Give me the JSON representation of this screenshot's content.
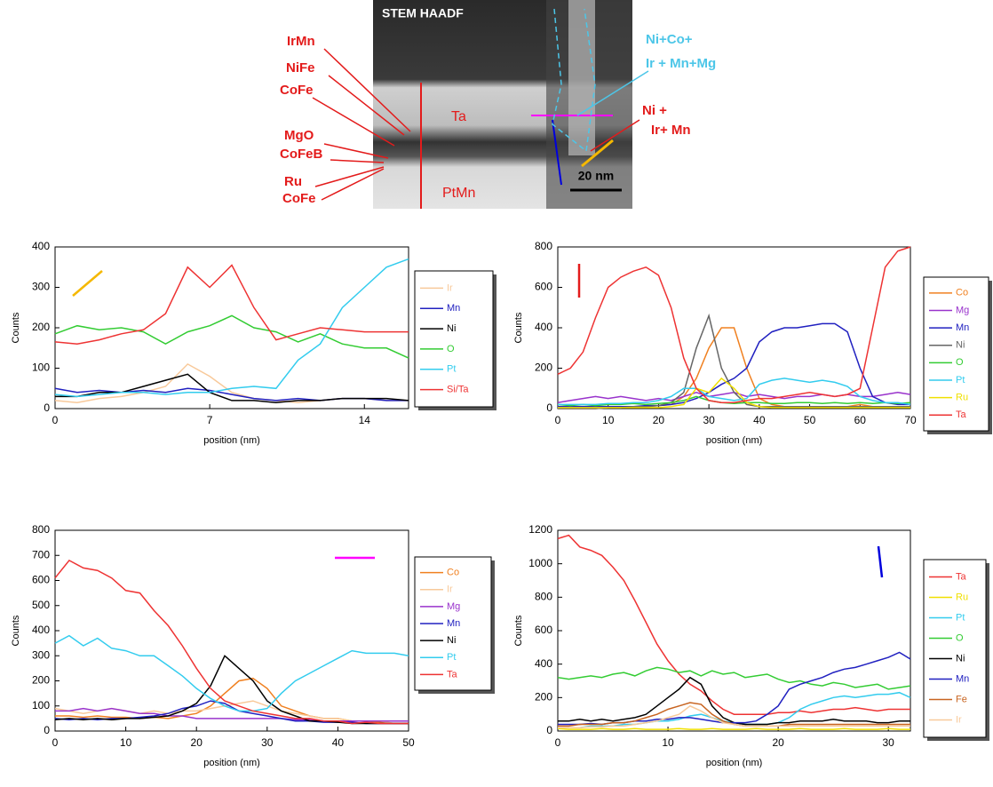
{
  "micrograph": {
    "title": "STEM HAADF",
    "scale_bar": "20 nm",
    "regions": [
      "Ta",
      "PtMn"
    ],
    "left_labels": [
      "IrMn",
      "NiFe",
      "CoFe",
      "MgO",
      "CoFeB",
      "Ru",
      "CoFe"
    ],
    "right_labels": [
      "Ni+Co+",
      "Ir + Mn+Mg",
      "Ni +",
      "Ir+ Mn"
    ]
  },
  "chart_data": [
    {
      "type": "line",
      "xlabel": "position (nm)",
      "ylabel": "Counts",
      "xlim": [
        0,
        16
      ],
      "ylim": [
        0,
        400
      ],
      "xticks": [
        0,
        7,
        14
      ],
      "yticks": [
        0,
        100,
        200,
        300,
        400
      ],
      "x": [
        0,
        1,
        2,
        3,
        4,
        5,
        6,
        7,
        8,
        9,
        10,
        11,
        12,
        13,
        14,
        15,
        16
      ],
      "series": [
        {
          "name": "Ir",
          "color": "#f8c99a",
          "values": [
            20,
            15,
            25,
            30,
            40,
            55,
            110,
            80,
            40,
            25,
            20,
            15,
            20,
            25,
            25,
            20,
            20
          ]
        },
        {
          "name": "Mn",
          "color": "#2020c0",
          "values": [
            50,
            40,
            45,
            40,
            45,
            40,
            50,
            45,
            35,
            25,
            20,
            25,
            20,
            25,
            25,
            20,
            20
          ]
        },
        {
          "name": "Ni",
          "color": "#000000",
          "values": [
            30,
            30,
            40,
            40,
            55,
            70,
            85,
            40,
            20,
            20,
            15,
            20,
            20,
            25,
            25,
            25,
            20
          ]
        },
        {
          "name": "O",
          "color": "#33cc33",
          "values": [
            185,
            205,
            195,
            200,
            190,
            160,
            190,
            205,
            230,
            200,
            190,
            165,
            185,
            160,
            150,
            150,
            125
          ]
        },
        {
          "name": "Pt",
          "color": "#33ccee",
          "values": [
            35,
            30,
            35,
            40,
            40,
            35,
            40,
            40,
            50,
            55,
            50,
            120,
            160,
            250,
            300,
            350,
            370
          ]
        },
        {
          "name": "Si/Ta",
          "color": "#ee3333",
          "values": [
            165,
            160,
            170,
            185,
            195,
            235,
            350,
            300,
            355,
            250,
            170,
            185,
            200,
            195,
            190,
            190,
            190
          ]
        }
      ]
    },
    {
      "type": "line",
      "xlabel": "position (nm)",
      "ylabel": "Counts",
      "xlim": [
        0,
        70
      ],
      "ylim": [
        0,
        800
      ],
      "xticks": [
        0,
        10,
        20,
        30,
        40,
        50,
        60,
        70
      ],
      "yticks": [
        0,
        200,
        400,
        600,
        800
      ],
      "x": [
        0,
        2.5,
        5,
        7.5,
        10,
        12.5,
        15,
        17.5,
        20,
        22.5,
        25,
        27.5,
        30,
        32.5,
        35,
        37.5,
        40,
        42.5,
        45,
        47.5,
        50,
        52.5,
        55,
        57.5,
        60,
        62.5,
        65,
        67.5,
        70
      ],
      "series": [
        {
          "name": "Co",
          "color": "#f08020",
          "values": [
            0,
            0,
            0,
            0,
            5,
            5,
            10,
            10,
            15,
            20,
            60,
            150,
            300,
            400,
            400,
            200,
            50,
            20,
            10,
            10,
            10,
            10,
            10,
            10,
            20,
            10,
            10,
            10,
            10
          ]
        },
        {
          "name": "Mg",
          "color": "#9933cc",
          "values": [
            30,
            40,
            50,
            60,
            50,
            60,
            50,
            40,
            50,
            40,
            60,
            80,
            60,
            70,
            80,
            60,
            70,
            60,
            50,
            60,
            60,
            70,
            60,
            70,
            60,
            60,
            70,
            80,
            70
          ]
        },
        {
          "name": "Mn",
          "color": "#2020c0",
          "values": [
            10,
            10,
            10,
            10,
            10,
            10,
            10,
            15,
            15,
            20,
            30,
            50,
            80,
            120,
            150,
            200,
            330,
            380,
            400,
            400,
            410,
            420,
            420,
            380,
            200,
            60,
            30,
            20,
            20
          ]
        },
        {
          "name": "Ni",
          "color": "#666666",
          "values": [
            0,
            0,
            0,
            0,
            5,
            5,
            10,
            10,
            15,
            30,
            80,
            300,
            460,
            200,
            80,
            20,
            10,
            10,
            10,
            10,
            10,
            10,
            10,
            10,
            10,
            10,
            10,
            10,
            10
          ]
        },
        {
          "name": "O",
          "color": "#33cc33",
          "values": [
            20,
            15,
            20,
            15,
            20,
            20,
            25,
            20,
            25,
            30,
            40,
            60,
            40,
            30,
            25,
            30,
            30,
            25,
            25,
            30,
            30,
            25,
            30,
            25,
            30,
            25,
            30,
            25,
            30
          ]
        },
        {
          "name": "Pt",
          "color": "#33ccee",
          "values": [
            20,
            20,
            20,
            20,
            25,
            25,
            30,
            30,
            40,
            60,
            100,
            100,
            60,
            50,
            40,
            50,
            120,
            140,
            150,
            140,
            130,
            140,
            130,
            110,
            60,
            40,
            30,
            30,
            20
          ]
        },
        {
          "name": "Ru",
          "color": "#f0e000",
          "values": [
            5,
            5,
            5,
            5,
            5,
            5,
            5,
            5,
            5,
            10,
            20,
            100,
            80,
            150,
            100,
            30,
            10,
            5,
            5,
            5,
            5,
            5,
            5,
            5,
            5,
            5,
            5,
            5,
            5
          ]
        },
        {
          "name": "Ta",
          "color": "#ee3333",
          "values": [
            170,
            200,
            280,
            450,
            600,
            650,
            680,
            700,
            660,
            500,
            250,
            100,
            40,
            30,
            30,
            40,
            50,
            50,
            60,
            70,
            80,
            70,
            60,
            70,
            100,
            400,
            700,
            780,
            800
          ]
        }
      ]
    },
    {
      "type": "line",
      "xlabel": "position (nm)",
      "ylabel": "Counts",
      "xlim": [
        0,
        50
      ],
      "ylim": [
        0,
        800
      ],
      "xticks": [
        0,
        10,
        20,
        30,
        40,
        50
      ],
      "yticks": [
        0,
        100,
        200,
        300,
        400,
        500,
        600,
        700,
        800
      ],
      "x": [
        0,
        2,
        4,
        6,
        8,
        10,
        12,
        14,
        16,
        18,
        20,
        22,
        24,
        26,
        28,
        30,
        32,
        34,
        36,
        38,
        40,
        42,
        44,
        46,
        48,
        50
      ],
      "series": [
        {
          "name": "Co",
          "color": "#f08020",
          "values": [
            60,
            60,
            55,
            60,
            55,
            55,
            50,
            55,
            50,
            60,
            70,
            100,
            150,
            200,
            210,
            170,
            100,
            80,
            60,
            50,
            50,
            40,
            40,
            35,
            30,
            30
          ]
        },
        {
          "name": "Ir",
          "color": "#f8c99a",
          "values": [
            90,
            80,
            70,
            80,
            90,
            80,
            70,
            80,
            70,
            80,
            80,
            90,
            100,
            110,
            120,
            100,
            80,
            70,
            60,
            50,
            50,
            40,
            40,
            40,
            30,
            30
          ]
        },
        {
          "name": "Mg",
          "color": "#9933cc",
          "values": [
            80,
            80,
            90,
            80,
            90,
            80,
            70,
            70,
            60,
            60,
            50,
            50,
            50,
            50,
            50,
            50,
            50,
            45,
            45,
            40,
            40,
            40,
            40,
            40,
            40,
            40
          ]
        },
        {
          "name": "Mn",
          "color": "#2020c0",
          "values": [
            50,
            45,
            50,
            45,
            50,
            50,
            55,
            60,
            70,
            90,
            100,
            120,
            110,
            80,
            70,
            60,
            50,
            40,
            40,
            35,
            35,
            35,
            30,
            30,
            30,
            30
          ]
        },
        {
          "name": "Ni",
          "color": "#000000",
          "values": [
            45,
            50,
            45,
            50,
            45,
            50,
            50,
            55,
            60,
            80,
            110,
            180,
            300,
            250,
            200,
            120,
            80,
            60,
            40,
            40,
            35,
            30,
            30,
            30,
            30,
            30
          ]
        },
        {
          "name": "Pt",
          "color": "#33ccee",
          "values": [
            350,
            380,
            340,
            370,
            330,
            320,
            300,
            300,
            260,
            220,
            170,
            130,
            100,
            80,
            80,
            90,
            150,
            200,
            230,
            260,
            290,
            320,
            310,
            310,
            310,
            300
          ]
        },
        {
          "name": "Ta",
          "color": "#ee3333",
          "values": [
            610,
            680,
            650,
            640,
            610,
            560,
            550,
            480,
            420,
            340,
            250,
            170,
            120,
            100,
            80,
            70,
            60,
            50,
            50,
            40,
            40,
            30,
            35,
            30,
            30,
            30
          ]
        }
      ]
    },
    {
      "type": "line",
      "xlabel": "position (nm)",
      "ylabel": "Counts",
      "xlim": [
        0,
        32
      ],
      "ylim": [
        0,
        1200
      ],
      "xticks": [
        0,
        10,
        20,
        30
      ],
      "yticks": [
        0,
        200,
        400,
        600,
        800,
        1000,
        1200
      ],
      "x": [
        0,
        1,
        2,
        3,
        4,
        5,
        6,
        7,
        8,
        9,
        10,
        11,
        12,
        13,
        14,
        15,
        16,
        17,
        18,
        19,
        20,
        21,
        22,
        23,
        24,
        25,
        26,
        27,
        28,
        29,
        30,
        31,
        32
      ],
      "series": [
        {
          "name": "Ta",
          "color": "#ee3333",
          "values": [
            1150,
            1170,
            1100,
            1080,
            1050,
            980,
            900,
            780,
            650,
            520,
            420,
            340,
            280,
            240,
            180,
            130,
            100,
            100,
            100,
            100,
            110,
            110,
            120,
            110,
            120,
            130,
            130,
            140,
            130,
            120,
            130,
            130,
            130
          ]
        },
        {
          "name": "Ru",
          "color": "#f0e000",
          "values": [
            15,
            10,
            10,
            10,
            15,
            10,
            10,
            15,
            10,
            10,
            10,
            15,
            10,
            10,
            15,
            10,
            10,
            10,
            15,
            10,
            10,
            10,
            15,
            10,
            10,
            10,
            15,
            10,
            10,
            10,
            15,
            10,
            10
          ]
        },
        {
          "name": "Pt",
          "color": "#33ccee",
          "values": [
            20,
            20,
            20,
            30,
            30,
            30,
            40,
            40,
            50,
            60,
            60,
            70,
            90,
            100,
            80,
            60,
            50,
            40,
            40,
            40,
            50,
            80,
            130,
            160,
            180,
            200,
            210,
            200,
            210,
            220,
            220,
            230,
            200
          ]
        },
        {
          "name": "O",
          "color": "#33cc33",
          "values": [
            320,
            310,
            320,
            330,
            320,
            340,
            350,
            330,
            360,
            380,
            370,
            350,
            360,
            330,
            360,
            340,
            350,
            320,
            330,
            340,
            310,
            290,
            300,
            280,
            270,
            290,
            280,
            260,
            270,
            280,
            250,
            260,
            270
          ]
        },
        {
          "name": "Ni",
          "color": "#000000",
          "values": [
            60,
            60,
            70,
            60,
            70,
            60,
            70,
            80,
            100,
            150,
            200,
            250,
            320,
            280,
            150,
            80,
            50,
            40,
            40,
            40,
            50,
            50,
            60,
            60,
            60,
            70,
            60,
            60,
            60,
            50,
            50,
            60,
            60
          ]
        },
        {
          "name": "Mn",
          "color": "#2020c0",
          "values": [
            40,
            40,
            40,
            45,
            40,
            50,
            50,
            60,
            60,
            70,
            70,
            80,
            80,
            70,
            60,
            50,
            50,
            50,
            60,
            100,
            150,
            250,
            280,
            300,
            320,
            350,
            370,
            380,
            400,
            420,
            440,
            470,
            430
          ]
        },
        {
          "name": "Fe",
          "color": "#c86420",
          "values": [
            30,
            30,
            40,
            40,
            40,
            50,
            50,
            60,
            80,
            100,
            130,
            150,
            170,
            160,
            100,
            60,
            40,
            30,
            30,
            30,
            30,
            40,
            40,
            40,
            40,
            40,
            40,
            40,
            40,
            40,
            40,
            40,
            40
          ]
        },
        {
          "name": "Ir",
          "color": "#f8c99a",
          "values": [
            20,
            20,
            20,
            25,
            25,
            30,
            30,
            40,
            50,
            60,
            80,
            100,
            150,
            120,
            80,
            50,
            40,
            30,
            30,
            30,
            30,
            30,
            30,
            30,
            30,
            30,
            30,
            30,
            30,
            30,
            30,
            30,
            30
          ]
        }
      ]
    }
  ]
}
